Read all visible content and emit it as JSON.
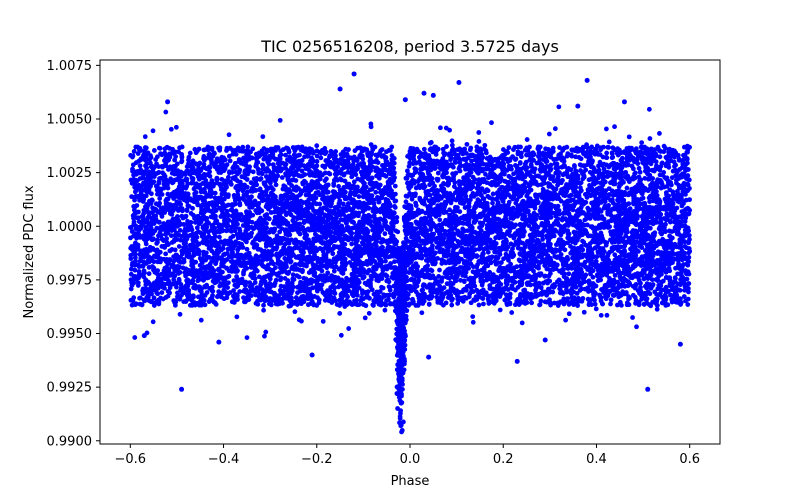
{
  "chart_data": {
    "type": "scatter",
    "title": "TIC 0256516208, period 3.5725 days",
    "xlabel": "Phase",
    "ylabel": "Normalized PDC flux",
    "xlim": [
      -0.665,
      0.665
    ],
    "ylim": [
      0.98985,
      1.00775
    ],
    "x_ticks": [
      -0.6,
      -0.4,
      -0.2,
      0.0,
      0.2,
      0.4,
      0.6
    ],
    "x_tick_labels": [
      "−0.6",
      "−0.4",
      "−0.2",
      "0.0",
      "0.2",
      "0.4",
      "0.6"
    ],
    "y_ticks": [
      0.99,
      0.9925,
      0.995,
      0.9975,
      1.0,
      1.0025,
      1.005,
      1.0075
    ],
    "y_tick_labels": [
      "0.9900",
      "0.9925",
      "0.9950",
      "0.9975",
      "1.0000",
      "1.0025",
      "1.0050",
      "1.0075"
    ],
    "grid": false,
    "legend": "none",
    "point_color": "#0000ff",
    "phase_range": [
      -0.6,
      0.6
    ],
    "baseline_flux": 1.0,
    "scatter_core_halfwidth": 0.0037,
    "transit": {
      "center_phase": -0.02,
      "min_flux": 0.9907,
      "width_phase": 0.03
    },
    "outliers": [
      {
        "x": -0.12,
        "y": 1.0071
      },
      {
        "x": 0.38,
        "y": 1.0068
      },
      {
        "x": 0.105,
        "y": 1.0067
      },
      {
        "x": -0.15,
        "y": 1.0064
      },
      {
        "x": 0.03,
        "y": 1.0062
      },
      {
        "x": 0.05,
        "y": 1.0061
      },
      {
        "x": -0.01,
        "y": 1.0059
      },
      {
        "x": 0.46,
        "y": 1.0058
      },
      {
        "x": -0.52,
        "y": 1.0058
      },
      {
        "x": 0.36,
        "y": 1.0056
      },
      {
        "x": -0.49,
        "y": 0.9924
      },
      {
        "x": 0.51,
        "y": 0.9924
      },
      {
        "x": 0.23,
        "y": 0.9937
      },
      {
        "x": -0.21,
        "y": 0.994
      },
      {
        "x": 0.04,
        "y": 0.9939
      },
      {
        "x": -0.41,
        "y": 0.9946
      },
      {
        "x": 0.58,
        "y": 0.9945
      },
      {
        "x": -0.57,
        "y": 0.9949
      },
      {
        "x": 0.29,
        "y": 0.9947
      }
    ]
  }
}
